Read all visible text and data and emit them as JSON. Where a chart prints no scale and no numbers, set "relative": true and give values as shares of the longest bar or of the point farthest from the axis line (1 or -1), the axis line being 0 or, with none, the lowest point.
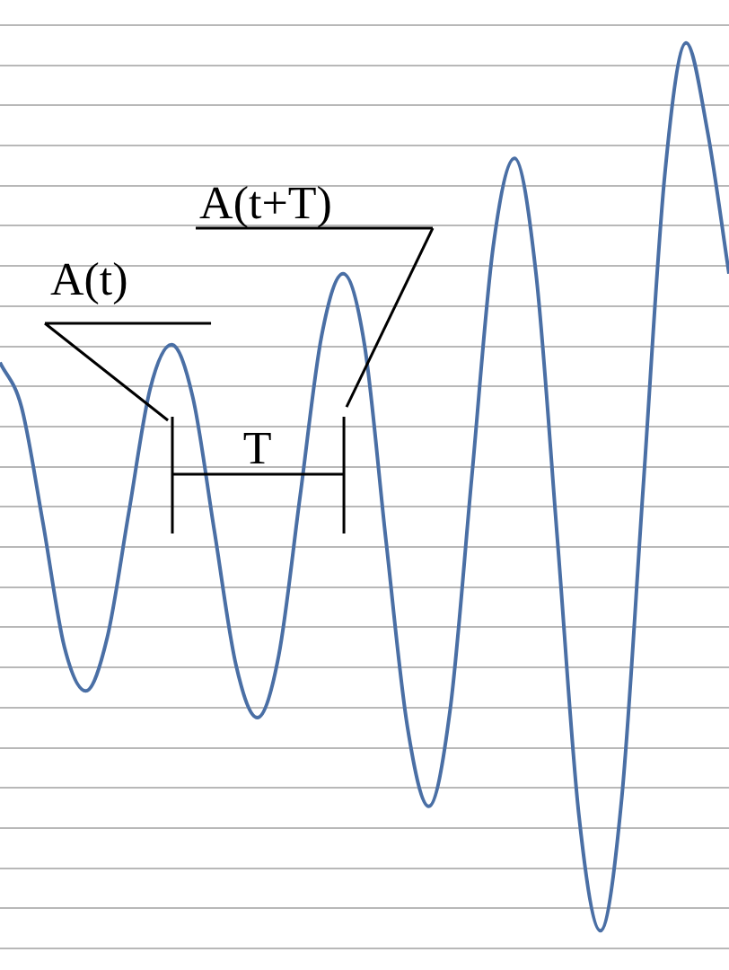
{
  "chart_data": {
    "type": "line",
    "relative": true,
    "grid": "y",
    "legend": false,
    "marker": "none",
    "line_style": "solid",
    "categories": [
      null,
      null,
      null,
      null,
      null,
      null,
      null,
      null,
      null,
      null,
      null,
      null,
      null,
      null,
      null,
      null,
      null,
      null,
      null,
      null,
      null,
      null,
      null,
      null,
      null,
      null,
      null,
      null,
      null,
      null,
      null,
      null,
      null,
      null,
      null
    ],
    "series": [
      {
        "color": "#4a6fa5",
        "values": [
          0.64,
          0.59,
          0.46,
          0.32,
          0.27,
          0.33,
          0.47,
          0.61,
          0.66,
          0.6,
          0.45,
          0.3,
          0.24,
          0.31,
          0.49,
          0.67,
          0.74,
          0.66,
          0.44,
          0.23,
          0.14,
          0.25,
          0.51,
          0.77,
          0.87,
          0.74,
          0.44,
          0.13,
          0,
          0.15,
          0.5,
          0.85,
          1,
          0.9,
          0.74
        ]
      }
    ],
    "annotations": [
      "A(t)",
      "A(t+T)",
      "T"
    ]
  }
}
